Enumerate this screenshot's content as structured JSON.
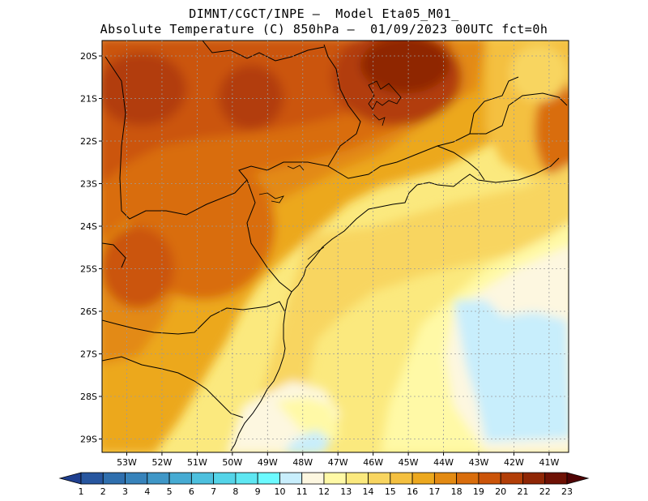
{
  "header": {
    "title_line1": "DIMNT/CGCT/INPE –  Model Eta05_M01_",
    "title_line2": "Absolute Temperature (C) 850hPa –  01/09/2023 00UTC fct=0h"
  },
  "map": {
    "variable": "Absolute Temperature",
    "units": "C",
    "level": "850hPa",
    "lat_labels": [
      "20S",
      "21S",
      "22S",
      "23S",
      "24S",
      "25S",
      "26S",
      "27S",
      "28S",
      "29S"
    ],
    "lon_labels": [
      "53W",
      "52W",
      "51W",
      "50W",
      "49W",
      "48W",
      "47W",
      "46W",
      "45W",
      "44W",
      "43W",
      "42W",
      "41W"
    ]
  },
  "colorbar": {
    "labels": [
      "1",
      "2",
      "3",
      "4",
      "5",
      "6",
      "7",
      "8",
      "9",
      "10",
      "11",
      "12",
      "13",
      "14",
      "15",
      "16",
      "17",
      "18",
      "19",
      "20",
      "21",
      "22",
      "23"
    ],
    "colors": [
      "#1f3f8f",
      "#27569f",
      "#2f6fae",
      "#3783bb",
      "#3f97c7",
      "#46abd3",
      "#4dc0de",
      "#54d4e8",
      "#5ee7f2",
      "#6cfaff",
      "#c8eefc",
      "#fdf7e0",
      "#fff9a6",
      "#fbe97e",
      "#f8d560",
      "#f4c040",
      "#eca81e",
      "#e38a12",
      "#d96d0c",
      "#cb5409",
      "#b23e07",
      "#8f2605",
      "#6e1104",
      "#4f0304"
    ]
  }
}
